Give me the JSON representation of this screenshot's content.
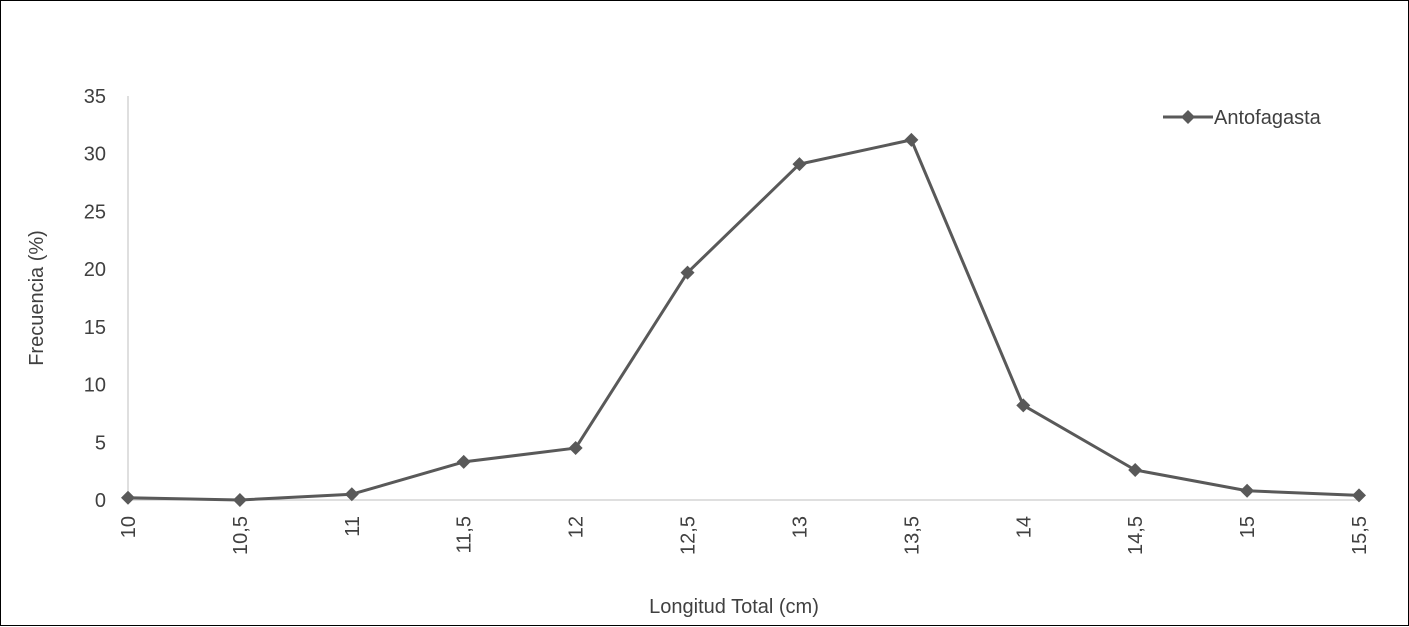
{
  "chart_data": {
    "type": "line",
    "title": "",
    "xlabel": "Longitud Total (cm)",
    "ylabel": "Frecuencia  (%)",
    "categories": [
      "10",
      "10,5",
      "11",
      "11,5",
      "12",
      "12,5",
      "13",
      "13,5",
      "14",
      "14,5",
      "15",
      "15,5"
    ],
    "series": [
      {
        "name": "Antofagasta",
        "values": [
          0.2,
          0.0,
          0.5,
          3.3,
          4.5,
          19.7,
          29.1,
          31.2,
          8.2,
          2.6,
          0.8,
          0.4
        ],
        "color": "#595959",
        "marker": "diamond"
      }
    ],
    "ylim": [
      0,
      35
    ],
    "yticks": [
      "0",
      "5",
      "10",
      "15",
      "20",
      "25",
      "30",
      "35"
    ],
    "grid": false,
    "legend_position": "top-right"
  }
}
